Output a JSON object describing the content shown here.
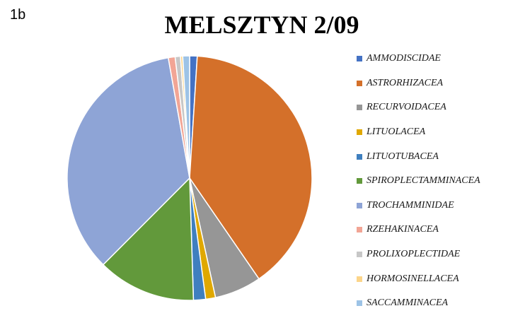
{
  "panel_label": "1b",
  "chart_data": {
    "type": "pie",
    "title": "MELSZTYN 2/09",
    "slices": [
      {
        "label": "AMMODISCIDAE",
        "value": 1.0,
        "color": "#4472C4"
      },
      {
        "label": "ASTRORHIZACEA",
        "value": 39.5,
        "color": "#D4702A"
      },
      {
        "label": "RECURVOIDACEA",
        "value": 6.2,
        "color": "#969696"
      },
      {
        "label": "LITUOLACEA",
        "value": 1.3,
        "color": "#E0A800"
      },
      {
        "label": "LITUOTUBACEA",
        "value": 1.6,
        "color": "#3F7FBF"
      },
      {
        "label": "SPIROPLECTAMMINACEA",
        "value": 13.0,
        "color": "#62993B"
      },
      {
        "label": "TROCHAMMINIDAE",
        "value": 34.8,
        "color": "#8EA4D6"
      },
      {
        "label": "RZEHAKINACEA",
        "value": 0.9,
        "color": "#F2A595"
      },
      {
        "label": "PROLIXOPLECTIDAE",
        "value": 0.7,
        "color": "#C7C7C7"
      },
      {
        "label": "HORMOSINELLACEA",
        "value": 0.3,
        "color": "#FCD58A"
      },
      {
        "label": "SACCAMMINACEA",
        "value": 0.9,
        "color": "#9DC3E6"
      }
    ],
    "start_angle": "12 o'clock",
    "direction": "clockwise",
    "legend_position": "right"
  }
}
